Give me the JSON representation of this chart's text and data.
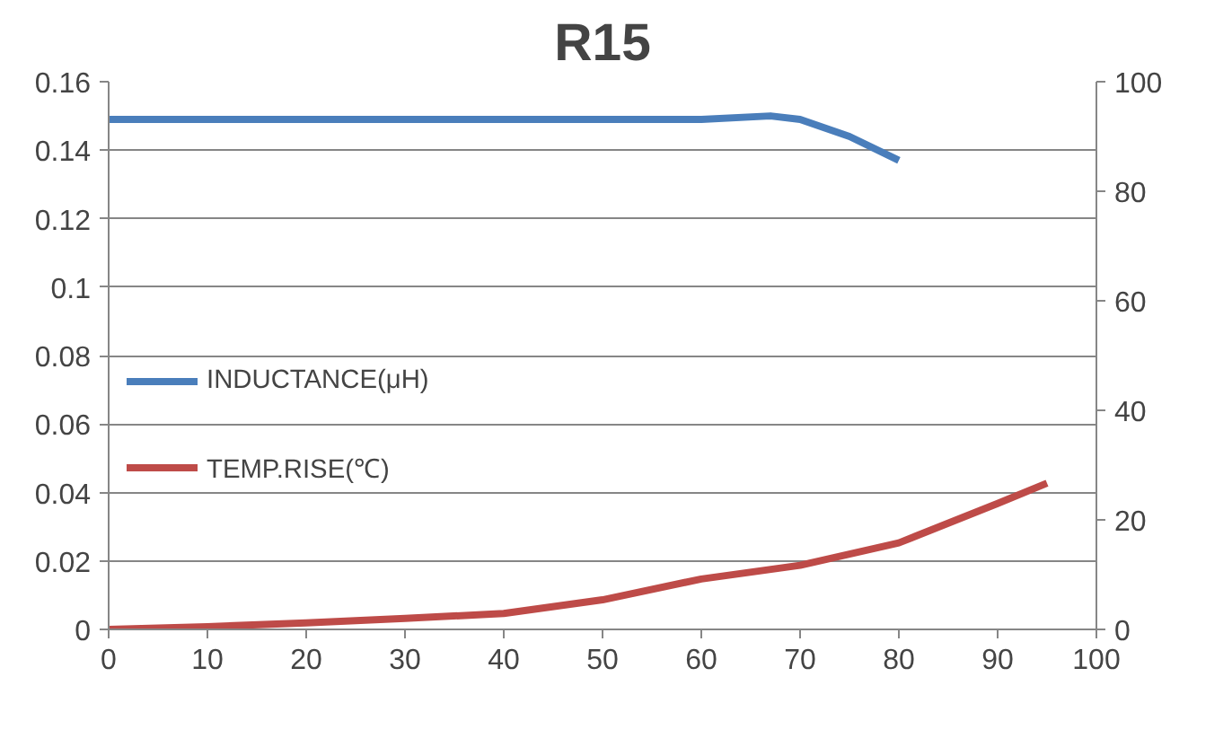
{
  "chart_data": {
    "type": "line",
    "title": "R15",
    "xlim": [
      0,
      100
    ],
    "xticks": [
      0,
      10,
      20,
      30,
      40,
      50,
      60,
      70,
      80,
      90,
      100
    ],
    "ylim": [
      0,
      0.16
    ],
    "yticks": [
      0,
      0.02,
      0.04,
      0.06,
      0.08,
      0.1,
      0.12,
      0.14,
      0.16
    ],
    "y2lim": [
      0,
      100
    ],
    "y2ticks": [
      0,
      20,
      40,
      60,
      80,
      100
    ],
    "grid": "y",
    "legend": "left",
    "line_style": "solid",
    "marker": "none",
    "series": [
      {
        "name": "INDUCTANCE(μH)",
        "color": "#4a7ebb",
        "x": [
          0,
          10,
          20,
          30,
          40,
          50,
          60,
          67,
          70,
          75,
          80
        ],
        "values": [
          0.149,
          0.149,
          0.149,
          0.149,
          0.149,
          0.149,
          0.149,
          0.15,
          0.149,
          0.144,
          0.137
        ]
      },
      {
        "name": "TEMP.RISE(℃)",
        "color": "#be4b48",
        "axis": "y2",
        "x": [
          0,
          10,
          20,
          30,
          40,
          50,
          60,
          70,
          80,
          90,
          95
        ],
        "values": [
          0,
          0.5,
          1.2,
          2,
          2.9,
          5.4,
          9.2,
          11.7,
          15.8,
          23,
          26.7
        ]
      }
    ]
  }
}
